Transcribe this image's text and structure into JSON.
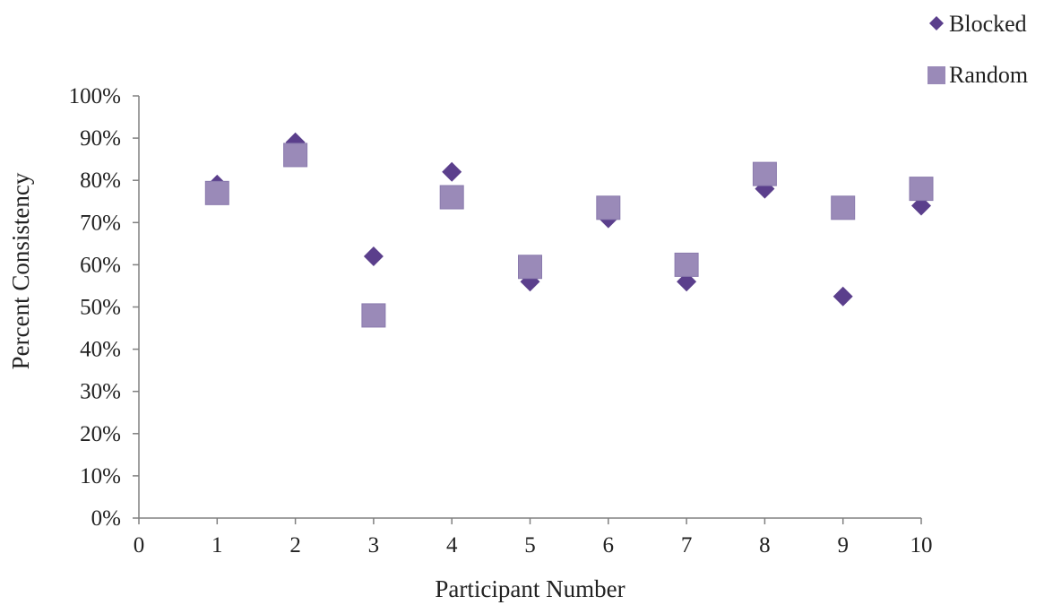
{
  "chart_data": {
    "type": "scatter",
    "title": "",
    "xlabel": "Participant Number",
    "ylabel": "Percent Consistency",
    "xlim": [
      0,
      10
    ],
    "ylim": [
      0,
      100
    ],
    "x_ticks": [
      "0",
      "1",
      "2",
      "3",
      "4",
      "5",
      "6",
      "7",
      "8",
      "9",
      "10"
    ],
    "y_ticks": [
      "0%",
      "10%",
      "20%",
      "30%",
      "40%",
      "50%",
      "60%",
      "70%",
      "80%",
      "90%",
      "100%"
    ],
    "grid": false,
    "legend_position": "top-right",
    "series": [
      {
        "name": "Blocked",
        "marker": "diamond",
        "color": "#5b3f8c",
        "x": [
          1,
          2,
          3,
          4,
          5,
          6,
          7,
          8,
          9,
          10
        ],
        "y": [
          79,
          89,
          62,
          82,
          56,
          71,
          56,
          78,
          52.5,
          74
        ]
      },
      {
        "name": "Random",
        "marker": "square",
        "color": "#9a8ab8",
        "x": [
          1,
          2,
          3,
          4,
          5,
          6,
          7,
          8,
          9,
          10
        ],
        "y": [
          77,
          86,
          48,
          76,
          59.5,
          73.5,
          60,
          81.5,
          73.5,
          78
        ]
      }
    ]
  }
}
